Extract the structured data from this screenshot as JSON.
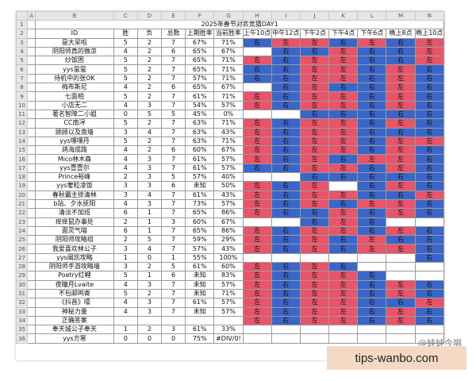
{
  "sheet": {
    "columns": [
      "",
      "A",
      "B",
      "C",
      "D",
      "E",
      "F",
      "G",
      "H",
      "I",
      "J",
      "K",
      "L",
      "M",
      "N"
    ],
    "title": "2025年春节对弈竞猜DAY1",
    "headers": [
      "ID",
      "胜",
      "负",
      "总数",
      "上期胜率",
      "当前胜率",
      "上午10点",
      "中午12点",
      "下午2点",
      "下午4点",
      "下午6点",
      "晚上8点",
      "晚上10点"
    ],
    "picks_label": {
      "left": "左",
      "right": "右"
    },
    "rows": [
      {
        "rn": "3",
        "id": "是大呆啦",
        "win": "5",
        "lose": "2",
        "total": "7",
        "prev": "67%",
        "cur": "71%",
        "picks": [
          "R",
          "L",
          "L",
          "R",
          "L",
          "R",
          "L"
        ]
      },
      {
        "rn": "4",
        "id": "阴阳师真的微凉",
        "win": "4",
        "lose": "2",
        "total": "6",
        "prev": "65%",
        "cur": "67%",
        "picks": [
          "",
          "R",
          "R",
          "L",
          "R",
          "R",
          "L"
        ]
      },
      {
        "rn": "5",
        "id": "炒饭困",
        "win": "5",
        "lose": "2",
        "total": "7",
        "prev": "65%",
        "cur": "71%",
        "picks": [
          "L",
          "R",
          "L",
          "L",
          "R",
          "R",
          "L"
        ]
      },
      {
        "rn": "6",
        "id": "yys萤萤",
        "win": "5",
        "lose": "2",
        "total": "7",
        "prev": "65%",
        "cur": "71%",
        "picks": [
          "R",
          "R",
          "L",
          "L",
          "R",
          "L",
          "R"
        ]
      },
      {
        "rn": "7",
        "id": "待机中的张OK",
        "win": "5",
        "lose": "2",
        "total": "7",
        "prev": "57%",
        "cur": "71%",
        "picks": [
          "R",
          "R",
          "L",
          "L",
          "R",
          "L",
          "R"
        ]
      },
      {
        "rn": "8",
        "id": "梅布斯尼",
        "win": "4",
        "lose": "2",
        "total": "6",
        "prev": "65%",
        "cur": "67%",
        "picks": [
          "",
          "R",
          "L",
          "R",
          "R",
          "L",
          "R"
        ]
      },
      {
        "rn": "9",
        "id": "七面相",
        "win": "5",
        "lose": "2",
        "total": "7",
        "prev": "61%",
        "cur": "71%",
        "picks": [
          "L",
          "R",
          "L",
          "L",
          "R",
          "L",
          "R"
        ]
      },
      {
        "rn": "10",
        "id": "小店无二",
        "win": "4",
        "lose": "3",
        "total": "7",
        "prev": "54%",
        "cur": "57%",
        "picks": [
          "L",
          "R",
          "L",
          "L",
          "R",
          "L",
          "R"
        ]
      },
      {
        "rn": "11",
        "id": "著名智障二小姐",
        "win": "0",
        "lose": "5",
        "total": "5",
        "prev": "45%",
        "cur": "0%",
        "picks": [
          "",
          "",
          "R",
          "R",
          "R",
          "R",
          "R"
        ]
      },
      {
        "rn": "12",
        "id": "CC南浔",
        "win": "5",
        "lose": "2",
        "total": "7",
        "prev": "63%",
        "cur": "71%",
        "picks": [
          "L",
          "R",
          "L",
          "L",
          "R",
          "L",
          "R"
        ]
      },
      {
        "rn": "13",
        "id": "顾顾以及南墙",
        "win": "3",
        "lose": "4",
        "total": "7",
        "prev": "63%",
        "cur": "43%",
        "picks": [
          "L",
          "R",
          "L",
          "L",
          "R",
          "R",
          "R"
        ]
      },
      {
        "rn": "14",
        "id": "yys嘿嘿丹",
        "win": "5",
        "lose": "2",
        "total": "7",
        "prev": "63%",
        "cur": "71%",
        "picks": [
          "L",
          "R",
          "L",
          "L",
          "R",
          "L",
          "L"
        ]
      },
      {
        "rn": "15",
        "id": "鸽海成路",
        "win": "4",
        "lose": "2",
        "total": "6",
        "prev": "60%",
        "cur": "67%",
        "picks": [
          "L",
          "R",
          "L",
          "L",
          "R",
          "L",
          "R"
        ]
      },
      {
        "rn": "16",
        "id": "Mico林木森",
        "win": "4",
        "lose": "3",
        "total": "7",
        "prev": "61%",
        "cur": "57%",
        "picks": [
          "L",
          "R",
          "L",
          "R",
          "L",
          "L",
          "R"
        ]
      },
      {
        "rn": "17",
        "id": "yys壹壹尔",
        "win": "4",
        "lose": "3",
        "total": "7",
        "prev": "61%",
        "cur": "57%",
        "picks": [
          "R",
          "R",
          "L",
          "L",
          "R",
          "L",
          "R"
        ]
      },
      {
        "rn": "18",
        "id": "Prince裕峰",
        "win": "2",
        "lose": "3",
        "total": "5",
        "prev": "57%",
        "cur": "40%",
        "picks": [
          "",
          "",
          "R",
          "R",
          "R",
          "R",
          "R"
        ]
      },
      {
        "rn": "19",
        "id": "yys奢粒凌饭",
        "win": "3",
        "lose": "3",
        "total": "6",
        "prev": "未知",
        "cur": "50%",
        "picks": [
          "L",
          "R",
          "L",
          "",
          "R",
          "L",
          "R"
        ]
      },
      {
        "rn": "20",
        "id": "春秋霸主徐清林",
        "win": "3",
        "lose": "4",
        "total": "7",
        "prev": "61%",
        "cur": "43%",
        "picks": [
          "L",
          "R",
          "L",
          "L",
          "R",
          "R",
          "L"
        ]
      },
      {
        "rn": "21",
        "id": "b站、夕水抚阳",
        "win": "4",
        "lose": "3",
        "total": "7",
        "prev": "73%",
        "cur": "57%",
        "picks": [
          "L",
          "R",
          "L",
          "R",
          "L",
          "L",
          "R"
        ]
      },
      {
        "rn": "22",
        "id": "清淡不加班",
        "win": "6",
        "lose": "1",
        "total": "7",
        "prev": "65%",
        "cur": "86%",
        "picks": [
          "L",
          "R",
          "R",
          "L",
          "R",
          "L",
          "R"
        ]
      },
      {
        "rn": "23",
        "id": "痒痒鼠办事处",
        "win": "2",
        "lose": "1",
        "total": "3",
        "prev": "60%",
        "cur": "67%",
        "picks": [
          "",
          "",
          "R",
          "L",
          "R",
          "",
          ""
        ]
      },
      {
        "rn": "24",
        "id": "面灵气喵",
        "win": "6",
        "lose": "1",
        "total": "7",
        "prev": "65%",
        "cur": "86%",
        "picks": [
          "L",
          "R",
          "L",
          "L",
          "R",
          "L",
          "R"
        ]
      },
      {
        "rn": "25",
        "id": "阴阳师攻略组",
        "win": "2",
        "lose": "5",
        "total": "7",
        "prev": "59%",
        "cur": "29%",
        "picks": [
          "L",
          "R",
          "L",
          "R",
          "L",
          "R",
          "R"
        ]
      },
      {
        "rn": "26",
        "id": "我爱喜欢林公子",
        "win": "3",
        "lose": "4",
        "total": "7",
        "prev": "57%",
        "cur": "43%",
        "picks": [
          "L",
          "R",
          "L",
          "R",
          "L",
          "L",
          "R"
        ]
      },
      {
        "rn": "27",
        "id": "yys阐凯攻略",
        "win": "1",
        "lose": "0",
        "total": "1",
        "prev": "55%",
        "cur": "100%",
        "picks": [
          "",
          "",
          "",
          "",
          "",
          "",
          "R"
        ]
      },
      {
        "rn": "28",
        "id": "阴阳师手游攻略墙",
        "win": "3",
        "lose": "2",
        "total": "5",
        "prev": "61%",
        "cur": "60%",
        "picks": [
          "L",
          "R",
          "L",
          "R",
          "",
          "",
          ""
        ]
      },
      {
        "rn": "29",
        "id": "Poetry红鲤",
        "win": "5",
        "lose": "1",
        "total": "6",
        "prev": "未知",
        "cur": "83%",
        "picks": [
          "L",
          "R",
          "L",
          "L",
          "R",
          "",
          ""
        ]
      },
      {
        "rn": "30",
        "id": "夜瞳月Lvaite",
        "win": "4",
        "lose": "3",
        "total": "7",
        "prev": "未知",
        "cur": "57%",
        "picks": [
          "L",
          "R",
          "L",
          "L",
          "R",
          "L",
          "R"
        ]
      },
      {
        "rn": "31",
        "id": "不包邮鸣寄",
        "win": "5",
        "lose": "2",
        "total": "7",
        "prev": "未知",
        "cur": "71%",
        "picks": [
          "L",
          "R",
          "L",
          "L",
          "R",
          "L",
          "R"
        ]
      },
      {
        "rn": "32",
        "id": "《抖音》嘻",
        "win": "4",
        "lose": "3",
        "total": "7",
        "prev": "61%",
        "cur": "57%",
        "picks": [
          "L",
          "R",
          "L",
          "L",
          "R",
          "R",
          "L"
        ]
      },
      {
        "rn": "33",
        "id": "神秘力量",
        "win": "4",
        "lose": "3",
        "total": "7",
        "prev": "未知",
        "cur": "57%",
        "picks": [
          "L",
          "R",
          "L",
          "L",
          "R",
          "L",
          "R"
        ]
      },
      {
        "rn": "34",
        "id": "正确答案",
        "win": "",
        "lose": "",
        "total": "",
        "prev": "",
        "cur": "",
        "picks": [
          "L",
          "R",
          "L",
          "L",
          "R",
          "L",
          "R"
        ],
        "answer": true
      },
      {
        "rn": "35",
        "id": "奉天城公子奉天",
        "win": "1",
        "lose": "2",
        "total": "3",
        "prev": "61%",
        "cur": "33%",
        "picks": [
          "",
          "",
          "",
          "",
          "",
          "",
          ""
        ]
      },
      {
        "rn": "36",
        "id": "yys方寒",
        "win": "0",
        "lose": "0",
        "total": "0",
        "prev": "75%",
        "cur": "#DIV/0!",
        "picks": [
          "",
          "",
          "",
          "",
          "",
          "",
          ""
        ]
      }
    ]
  },
  "watermark": "@蛙蛙今唱",
  "site": "tips-wanbo.com",
  "colors": {
    "left": "#e8546a",
    "right": "#3b66c9"
  }
}
